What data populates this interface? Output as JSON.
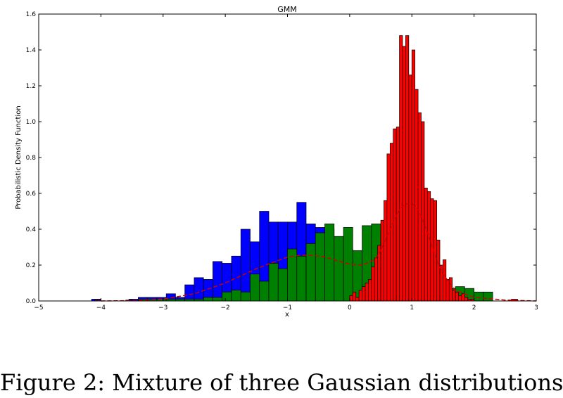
{
  "chart_data": {
    "type": "bar",
    "title": "GMM",
    "xlabel": "x",
    "ylabel": "Probabilistic Density Function",
    "xlim": [
      -5,
      3
    ],
    "ylim": [
      0,
      1.6
    ],
    "xticks": [
      -5,
      -4,
      -3,
      -2,
      -1,
      0,
      1,
      2,
      3
    ],
    "yticks": [
      0.0,
      0.2,
      0.4,
      0.6,
      0.8,
      1.0,
      1.2,
      1.4,
      1.6
    ],
    "grid": false,
    "colors": {
      "blue": "#0000ff",
      "green": "#008000",
      "red": "#ff0000",
      "curve": "#cc0000"
    },
    "series": [
      {
        "color": "blue",
        "bin_edges": [
          -4.15,
          -4.0,
          -3.85,
          -3.7,
          -3.55,
          -3.4,
          -3.25,
          -3.1,
          -2.95,
          -2.8,
          -2.65,
          -2.5,
          -2.35,
          -2.2,
          -2.05,
          -1.9,
          -1.75,
          -1.6,
          -1.45,
          -1.3,
          -1.15,
          -1.0,
          -0.85,
          -0.7,
          -0.55,
          -0.4,
          -0.25,
          -0.1,
          0.05,
          0.2
        ],
        "values": [
          0.01,
          0.0,
          0.0,
          0.0,
          0.01,
          0.02,
          0.02,
          0.02,
          0.04,
          0.02,
          0.09,
          0.13,
          0.12,
          0.22,
          0.21,
          0.25,
          0.4,
          0.33,
          0.5,
          0.44,
          0.44,
          0.44,
          0.55,
          0.43,
          0.41,
          0.4,
          0.35,
          0.29,
          0.28
        ]
      },
      {
        "color": "green",
        "bin_edges": [
          -3.4,
          -3.25,
          -3.1,
          -2.95,
          -2.8,
          -2.65,
          -2.5,
          -2.35,
          -2.2,
          -2.05,
          -1.9,
          -1.75,
          -1.6,
          -1.45,
          -1.3,
          -1.15,
          -1.0,
          -0.85,
          -0.7,
          -0.55,
          -0.4,
          -0.25,
          -0.1,
          0.05,
          0.2,
          0.35,
          0.5,
          0.65,
          0.8,
          0.95,
          1.1,
          1.25,
          1.4,
          1.55,
          1.7,
          1.85,
          2.0,
          2.15,
          2.3
        ],
        "values": [
          0.01,
          0.01,
          0.01,
          0.01,
          0.01,
          0.01,
          0.01,
          0.02,
          0.02,
          0.05,
          0.06,
          0.05,
          0.15,
          0.11,
          0.21,
          0.18,
          0.29,
          0.25,
          0.32,
          0.38,
          0.43,
          0.36,
          0.41,
          0.28,
          0.42,
          0.43,
          0.4,
          0.34,
          0.3,
          0.2,
          0.18,
          0.13,
          0.1,
          0.07,
          0.08,
          0.07,
          0.05,
          0.05
        ]
      },
      {
        "color": "red",
        "bin_edges": [
          0.0,
          0.05,
          0.1,
          0.15,
          0.2,
          0.25,
          0.3,
          0.35,
          0.4,
          0.45,
          0.5,
          0.55,
          0.6,
          0.65,
          0.7,
          0.75,
          0.8,
          0.85,
          0.9,
          0.95,
          1.0,
          1.05,
          1.1,
          1.15,
          1.2,
          1.25,
          1.3,
          1.35,
          1.4,
          1.45,
          1.5,
          1.55,
          1.6,
          1.65,
          1.7,
          1.75,
          1.8,
          1.85,
          1.9,
          1.95,
          2.0
        ],
        "values": [
          0.03,
          0.05,
          0.02,
          0.06,
          0.08,
          0.1,
          0.12,
          0.19,
          0.24,
          0.31,
          0.45,
          0.56,
          0.82,
          0.88,
          0.96,
          0.97,
          1.48,
          1.42,
          1.48,
          1.26,
          1.4,
          1.18,
          1.05,
          1.0,
          0.63,
          0.61,
          0.57,
          0.56,
          0.34,
          0.2,
          0.23,
          0.12,
          0.13,
          0.06,
          0.05,
          0.03,
          0.04,
          0.02,
          0.01,
          0.01
        ]
      },
      {
        "color": "red",
        "bin_edges": [
          -4.1,
          -4.0,
          -3.9,
          -3.6,
          -3.5,
          2.5,
          2.6,
          2.7
        ],
        "values": [
          0.005,
          0.0,
          0.0,
          0.005,
          0.0,
          0.0,
          0.01
        ]
      }
    ],
    "curve": {
      "color": "curve",
      "x": [
        -4.0,
        -3.5,
        -3.0,
        -2.5,
        -2.0,
        -1.5,
        -1.2,
        -1.0,
        -0.8,
        -0.6,
        -0.4,
        -0.2,
        0.0,
        0.2,
        0.4,
        0.5,
        0.6,
        0.7,
        0.8,
        0.9,
        1.0,
        1.1,
        1.2,
        1.3,
        1.4,
        1.5,
        1.7,
        2.0,
        2.5,
        3.0
      ],
      "y": [
        0.0,
        0.002,
        0.01,
        0.04,
        0.1,
        0.18,
        0.22,
        0.245,
        0.255,
        0.255,
        0.245,
        0.225,
        0.205,
        0.2,
        0.23,
        0.28,
        0.36,
        0.44,
        0.51,
        0.54,
        0.545,
        0.51,
        0.43,
        0.33,
        0.23,
        0.15,
        0.06,
        0.02,
        0.005,
        0.0
      ]
    }
  },
  "caption": "Figure 2: Mixture of three Gaussian distributions"
}
